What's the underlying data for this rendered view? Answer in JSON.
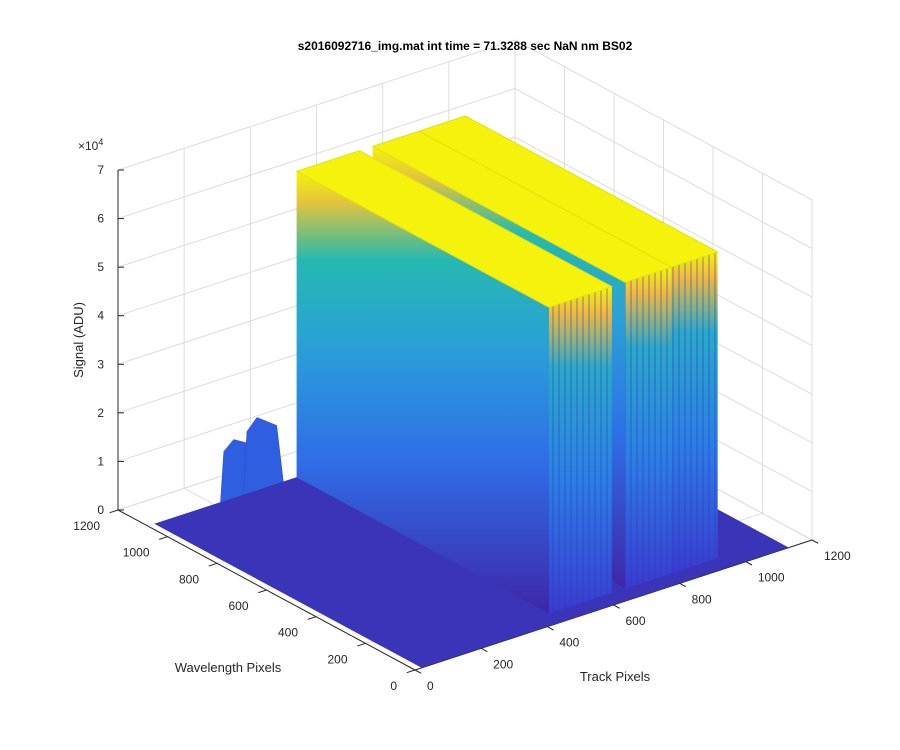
{
  "chart_data": {
    "type": "surface",
    "title": "s2016092716_img.mat int time = 71.3288 sec  NaN nm BS02",
    "xlabel": "Track Pixels",
    "ylabel": "Wavelength Pixels",
    "zlabel": "Signal (ADU)",
    "z_exponent_label": "×10",
    "z_exponent": "4",
    "x_ticks": [
      "0",
      "200",
      "400",
      "600",
      "800",
      "1000",
      "1200"
    ],
    "y_ticks": [
      "0",
      "200",
      "400",
      "600",
      "800",
      "1000",
      "1200"
    ],
    "z_ticks": [
      "0",
      "1",
      "2",
      "3",
      "4",
      "5",
      "6",
      "7"
    ],
    "xlim": [
      0,
      1200
    ],
    "ylim": [
      0,
      1200
    ],
    "zlim": [
      0,
      70000
    ],
    "grid": true,
    "colormap": "parula",
    "colors": {
      "low": "#3e26a8",
      "mid": "#2f96e0",
      "teal": "#21bfa6",
      "high": "#fbd32e",
      "peak": "#f5f20c"
    },
    "peaks": [
      {
        "track_start": 450,
        "track_end": 640,
        "signal": 63000
      },
      {
        "track_start": 680,
        "track_end": 820,
        "signal": 63000
      },
      {
        "track_start": 820,
        "track_end": 960,
        "signal": 63000
      }
    ],
    "background_signal": 500,
    "low_bumps": [
      {
        "wavelength": 1050,
        "track": 280,
        "signal": 12000
      },
      {
        "wavelength": 1050,
        "track": 350,
        "signal": 15000
      }
    ]
  }
}
